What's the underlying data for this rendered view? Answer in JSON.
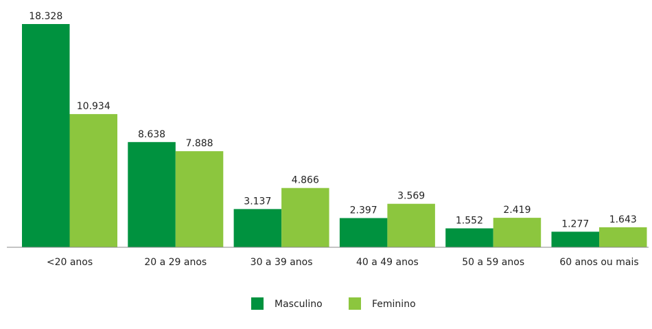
{
  "chart_data": {
    "type": "bar",
    "categories": [
      "<20 anos",
      "20 a 29 anos",
      "30 a 39 anos",
      "40 a 49 anos",
      "50 a 59 anos",
      "60 anos ou mais"
    ],
    "series": [
      {
        "name": "Masculino",
        "color": "#00923f",
        "values": [
          18328,
          8638,
          3137,
          2397,
          1552,
          1277
        ],
        "value_labels": [
          "18.328",
          "8.638",
          "3.137",
          "2.397",
          "1.552",
          "1.277"
        ]
      },
      {
        "name": "Feminino",
        "color": "#8cc63e",
        "values": [
          10934,
          7888,
          4866,
          3569,
          2419,
          1643
        ],
        "value_labels": [
          "10.934",
          "7.888",
          "4.866",
          "3.569",
          "2.419",
          "1.643"
        ]
      }
    ],
    "legend": "bottom"
  }
}
